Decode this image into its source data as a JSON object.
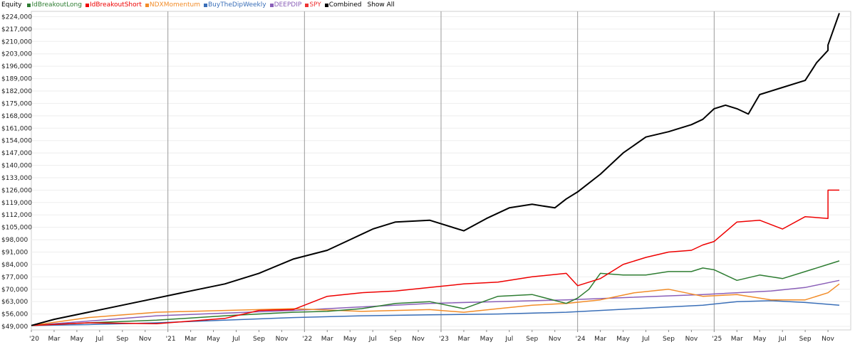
{
  "legend": {
    "title": "Equity",
    "show_all": "Show All",
    "items": [
      {
        "label": "IdBreakoutLong",
        "color": "#2e7d32"
      },
      {
        "label": "IdBreakoutShort",
        "color": "#ee0000"
      },
      {
        "label": "NDXMomentum",
        "color": "#f28c28"
      },
      {
        "label": "BuyTheDipWeekly",
        "color": "#3a6fb8"
      },
      {
        "label": "DEEPDIP",
        "color": "#8a5fb8"
      },
      {
        "label": "SPY",
        "color": "#ee3333"
      },
      {
        "label": "Combined",
        "color": "#000000"
      }
    ]
  },
  "chart_data": {
    "type": "line",
    "y_ticks": [
      "$224,000",
      "$217,000",
      "$210,000",
      "$203,000",
      "$196,000",
      "$189,000",
      "$182,000",
      "$175,000",
      "$168,000",
      "$161,000",
      "$154,000",
      "$147,000",
      "$140,000",
      "$133,000",
      "$126,000",
      "$119,000",
      "$112,000",
      "$105,000",
      "$98,000",
      "$91,000",
      "$84,000",
      "$77,000",
      "$70,000",
      "$63,000",
      "$56,000",
      "$49,000"
    ],
    "ylim": [
      47000,
      227000
    ],
    "x_ticks": [
      "'20",
      "Mar",
      "May",
      "Jul",
      "Sep",
      "Nov",
      "'21",
      "Mar",
      "May",
      "Jul",
      "Sep",
      "Nov",
      "'22",
      "Mar",
      "May",
      "Jul",
      "Sep",
      "Nov",
      "'23",
      "Mar",
      "May",
      "Jul",
      "Sep",
      "Nov",
      "'24",
      "Mar",
      "May",
      "Jul",
      "Sep",
      "Nov",
      "'25",
      "Mar",
      "May",
      "Jul",
      "Sep",
      "Nov"
    ],
    "xlim": [
      "2020-01",
      "2025-12"
    ],
    "year_gridlines": [
      "'21",
      "'22",
      "'23",
      "'24",
      "'25"
    ],
    "grid": true,
    "legend_position": "top-left",
    "series": [
      {
        "name": "Combined",
        "color": "#000000",
        "x": [
          "2020-01",
          "2020-03",
          "2020-06",
          "2020-09",
          "2020-12",
          "2021-03",
          "2021-06",
          "2021-09",
          "2021-12",
          "2022-03",
          "2022-05",
          "2022-07",
          "2022-09",
          "2022-12",
          "2023-03",
          "2023-05",
          "2023-07",
          "2023-09",
          "2023-11",
          "2023-12",
          "2024-01",
          "2024-03",
          "2024-05",
          "2024-07",
          "2024-09",
          "2024-11",
          "2024-12",
          "2025-01",
          "2025-02",
          "2025-03",
          "2025-04",
          "2025-05",
          "2025-07",
          "2025-09",
          "2025-10",
          "2025-11",
          "2025-11",
          "2025-12"
        ],
        "y": [
          49500,
          53000,
          57000,
          61000,
          65000,
          69000,
          73000,
          79000,
          87000,
          92000,
          98000,
          104000,
          108000,
          109000,
          103000,
          110000,
          116000,
          118000,
          116000,
          121000,
          125000,
          135000,
          147000,
          156000,
          159000,
          163000,
          166000,
          172000,
          174000,
          172000,
          169000,
          180000,
          184000,
          188000,
          198000,
          205000,
          208000,
          226000
        ]
      },
      {
        "name": "IdBreakoutShort",
        "color": "#ee0000",
        "x": [
          "2020-01",
          "2020-06",
          "2020-12",
          "2021-06",
          "2021-09",
          "2021-12",
          "2022-03",
          "2022-06",
          "2022-09",
          "2022-12",
          "2023-03",
          "2023-06",
          "2023-09",
          "2023-12",
          "2024-01",
          "2024-03",
          "2024-05",
          "2024-07",
          "2024-09",
          "2024-11",
          "2024-12",
          "2025-01",
          "2025-03",
          "2025-05",
          "2025-07",
          "2025-09",
          "2025-11",
          "2025-11",
          "2025-12"
        ],
        "y": [
          49500,
          51000,
          50500,
          53500,
          58000,
          58500,
          66000,
          68000,
          69000,
          71000,
          73000,
          74000,
          77000,
          79000,
          72000,
          76000,
          84000,
          88000,
          91000,
          92000,
          95000,
          97000,
          108000,
          109000,
          104000,
          111000,
          110000,
          126000,
          126000
        ]
      },
      {
        "name": "IdBreakoutLong",
        "color": "#2e7d32",
        "x": [
          "2020-01",
          "2020-06",
          "2020-12",
          "2021-06",
          "2021-12",
          "2022-03",
          "2022-06",
          "2022-09",
          "2022-12",
          "2023-03",
          "2023-06",
          "2023-09",
          "2023-12",
          "2024-01",
          "2024-02",
          "2024-03",
          "2024-05",
          "2024-07",
          "2024-09",
          "2024-11",
          "2024-12",
          "2025-01",
          "2025-03",
          "2025-05",
          "2025-07",
          "2025-09",
          "2025-11",
          "2025-12"
        ],
        "y": [
          49500,
          51000,
          52500,
          55000,
          57000,
          57500,
          59000,
          62000,
          63000,
          59000,
          66000,
          67000,
          62000,
          65000,
          70000,
          79000,
          78000,
          78000,
          80000,
          80000,
          82000,
          81000,
          75000,
          78000,
          76000,
          80000,
          84000,
          86000
        ]
      },
      {
        "name": "NDXMomentum",
        "color": "#f28c28",
        "x": [
          "2020-01",
          "2020-06",
          "2020-12",
          "2021-06",
          "2021-12",
          "2022-06",
          "2022-12",
          "2023-03",
          "2023-06",
          "2023-09",
          "2023-12",
          "2024-03",
          "2024-06",
          "2024-09",
          "2024-12",
          "2025-03",
          "2025-06",
          "2025-09",
          "2025-11",
          "2025-12"
        ],
        "y": [
          49500,
          54000,
          57000,
          58000,
          59000,
          57500,
          58500,
          57000,
          59000,
          61000,
          62000,
          64000,
          68000,
          70000,
          66000,
          67000,
          64000,
          64000,
          68000,
          73000
        ]
      },
      {
        "name": "DEEPDIP",
        "color": "#8a5fb8",
        "x": [
          "2020-01",
          "2020-12",
          "2021-12",
          "2022-12",
          "2023-12",
          "2024-12",
          "2025-06",
          "2025-09",
          "2025-12"
        ],
        "y": [
          49500,
          55000,
          58000,
          62000,
          64000,
          67000,
          69000,
          71000,
          75000
        ]
      },
      {
        "name": "BuyTheDipWeekly",
        "color": "#3a6fb8",
        "x": [
          "2020-01",
          "2020-06",
          "2020-12",
          "2021-06",
          "2021-12",
          "2022-06",
          "2022-12",
          "2023-06",
          "2023-12",
          "2024-06",
          "2024-12",
          "2025-03",
          "2025-06",
          "2025-09",
          "2025-12"
        ],
        "y": [
          49500,
          50000,
          51000,
          52500,
          54000,
          55000,
          55500,
          56000,
          57000,
          59000,
          61000,
          63000,
          63500,
          62500,
          61000
        ]
      }
    ]
  }
}
